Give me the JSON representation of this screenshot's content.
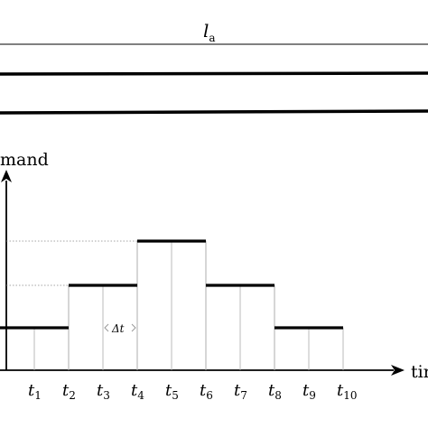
{
  "top_label": {
    "main": "l",
    "sub": "a"
  },
  "y_axis_label": "mand",
  "x_axis_label": "tir",
  "delta_label": "Δt",
  "ticks": [
    {
      "main": "t",
      "sub": "1"
    },
    {
      "main": "t",
      "sub": "2"
    },
    {
      "main": "t",
      "sub": "3"
    },
    {
      "main": "t",
      "sub": "4"
    },
    {
      "main": "t",
      "sub": "5"
    },
    {
      "main": "t",
      "sub": "6"
    },
    {
      "main": "t",
      "sub": "7"
    },
    {
      "main": "t",
      "sub": "8"
    },
    {
      "main": "t",
      "sub": "9"
    },
    {
      "main": "t",
      "sub": "10"
    }
  ],
  "chart_data": {
    "type": "line",
    "step_levels": [
      1,
      2,
      3,
      2,
      1
    ],
    "step_spans": [
      [
        0,
        2
      ],
      [
        2,
        4
      ],
      [
        4,
        6
      ],
      [
        6,
        8
      ],
      [
        8,
        10
      ]
    ]
  }
}
